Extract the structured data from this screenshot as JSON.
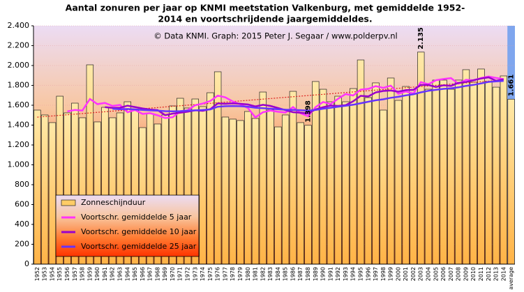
{
  "chart_data": {
    "type": "bar",
    "title": [
      "Aantal zonuren per jaar op KNMI  meetstation Valkenburg, met gemiddelde 1952-",
      "2014 en voortschrijdende jaargemiddeldes."
    ],
    "subtitle": "© Data KNMI. Graph: 2015 Peter J. Segaar / www.polderpv.nl",
    "categories": [
      "1952",
      "1953",
      "1954",
      "1955",
      "1956",
      "1957",
      "1958",
      "1959",
      "1960",
      "1961",
      "1962",
      "1963",
      "1964",
      "1965",
      "1966",
      "1967",
      "1968",
      "1969",
      "1970",
      "1971",
      "1972",
      "1973",
      "1974",
      "1975",
      "1976",
      "1977",
      "1978",
      "1979",
      "1980",
      "1981",
      "1982",
      "1983",
      "1984",
      "1985",
      "1986",
      "1987",
      "1988",
      "1989",
      "1990",
      "1991",
      "1992",
      "1993",
      "1994",
      "1995",
      "1996",
      "1997",
      "1998",
      "1999",
      "2000",
      "2001",
      "2002",
      "2003",
      "2004",
      "2005",
      "2006",
      "2007",
      "2008",
      "2009",
      "2010",
      "2011",
      "2012",
      "2013",
      "2014",
      "average"
    ],
    "series": [
      {
        "name": "Zonneschijnduur",
        "kind": "bar",
        "color": "#ffcc66",
        "values": [
          1551,
          1502,
          1425,
          1691,
          1523,
          1621,
          1474,
          2007,
          1432,
          1579,
          1474,
          1523,
          1635,
          1551,
          1375,
          1516,
          1411,
          1502,
          1593,
          1670,
          1572,
          1663,
          1586,
          1726,
          1937,
          1481,
          1460,
          1446,
          1537,
          1467,
          1733,
          1551,
          1382,
          1502,
          1740,
          1425,
          1398,
          1839,
          1761,
          1635,
          1691,
          1635,
          1768,
          2056,
          1677,
          1825,
          1551,
          1874,
          1649,
          1789,
          1720,
          2135,
          1761,
          1853,
          1853,
          1761,
          1853,
          1958,
          1832,
          1965,
          1839,
          1782,
          1895,
          1661
        ]
      },
      {
        "name": "Voortschr. gemiddelde 5 jaar",
        "kind": "line",
        "color": "#ff33ff",
        "values": [
          null,
          null,
          null,
          null,
          1538,
          1552,
          1547,
          1663,
          1611,
          1623,
          1593,
          1603,
          1529,
          1552,
          1512,
          1520,
          1498,
          1471,
          1479,
          1538,
          1550,
          1600,
          1617,
          1643,
          1697,
          1679,
          1638,
          1610,
          1572,
          1478,
          1529,
          1547,
          1534,
          1527,
          1582,
          1520,
          1489,
          1581,
          1633,
          1612,
          1665,
          1712,
          1698,
          1757,
          1765,
          1792,
          1775,
          1797,
          1715,
          1738,
          1717,
          1833,
          1811,
          1852,
          1864,
          1873,
          1816,
          1856,
          1851,
          1874,
          1889,
          1875,
          1863,
          null
        ]
      },
      {
        "name": "Voortschr. gemiddelde 10 jaar",
        "kind": "line",
        "color": "#9900cc",
        "values": [
          null,
          null,
          null,
          null,
          null,
          null,
          null,
          null,
          null,
          1581,
          1573,
          1575,
          1596,
          1582,
          1568,
          1557,
          1551,
          1500,
          1516,
          1525,
          1535,
          1549,
          1544,
          1561,
          1618,
          1615,
          1619,
          1614,
          1608,
          1588,
          1604,
          1593,
          1572,
          1550,
          1530,
          1525,
          1518,
          1558,
          1580,
          1597,
          1593,
          1601,
          1640,
          1695,
          1689,
          1729,
          1744,
          1748,
          1736,
          1752,
          1755,
          1804,
          1804,
          1784,
          1801,
          1795,
          1825,
          1834,
          1852,
          1869,
          1881,
          1846,
          1860,
          null
        ]
      },
      {
        "name": "Voortschr. gemiddelde 25 jaar",
        "kind": "line",
        "color": "#6633ff",
        "values": [
          null,
          null,
          null,
          null,
          null,
          null,
          null,
          null,
          null,
          null,
          1565,
          1560,
          1562,
          1558,
          1552,
          1548,
          1545,
          1540,
          1538,
          1540,
          1545,
          1548,
          1552,
          1558,
          1585,
          1590,
          1592,
          1590,
          1585,
          1575,
          1570,
          1565,
          1560,
          1555,
          1552,
          1550,
          1545,
          1552,
          1565,
          1575,
          1585,
          1595,
          1605,
          1620,
          1635,
          1650,
          1660,
          1675,
          1685,
          1700,
          1710,
          1730,
          1745,
          1755,
          1765,
          1770,
          1780,
          1795,
          1805,
          1820,
          1835,
          1840,
          1845,
          null
        ]
      }
    ],
    "trendline": {
      "start": 1480,
      "end": 1855,
      "color": "#dd2222"
    },
    "annotations": [
      {
        "label": "2.135",
        "value": 2135,
        "category": "2003",
        "color": "#ee0000"
      },
      {
        "label": "1.398",
        "value": 1398,
        "category": "1988",
        "color": "#2233cc"
      },
      {
        "label": "1.661",
        "value": 1661,
        "category": "average",
        "color": "#000000"
      }
    ],
    "ylim": [
      0,
      2400
    ],
    "yticks": [
      0,
      {
        "value": 200,
        "label": "200"
      },
      {
        "value": 400,
        "label": "400"
      },
      {
        "value": 600,
        "label": "600"
      },
      {
        "value": 800,
        "label": "800"
      },
      {
        "value": 1000,
        "label": "1.000"
      },
      {
        "value": 1200,
        "label": "1.200"
      },
      {
        "value": 1400,
        "label": "1.400"
      },
      {
        "value": 1600,
        "label": "1.600"
      },
      {
        "value": 1800,
        "label": "1.800"
      },
      {
        "value": 2000,
        "label": "2.000"
      },
      {
        "value": 2200,
        "label": "2.200"
      },
      {
        "value": 2400,
        "label": "2.400"
      }
    ],
    "grid": true,
    "legend": "lower left"
  }
}
